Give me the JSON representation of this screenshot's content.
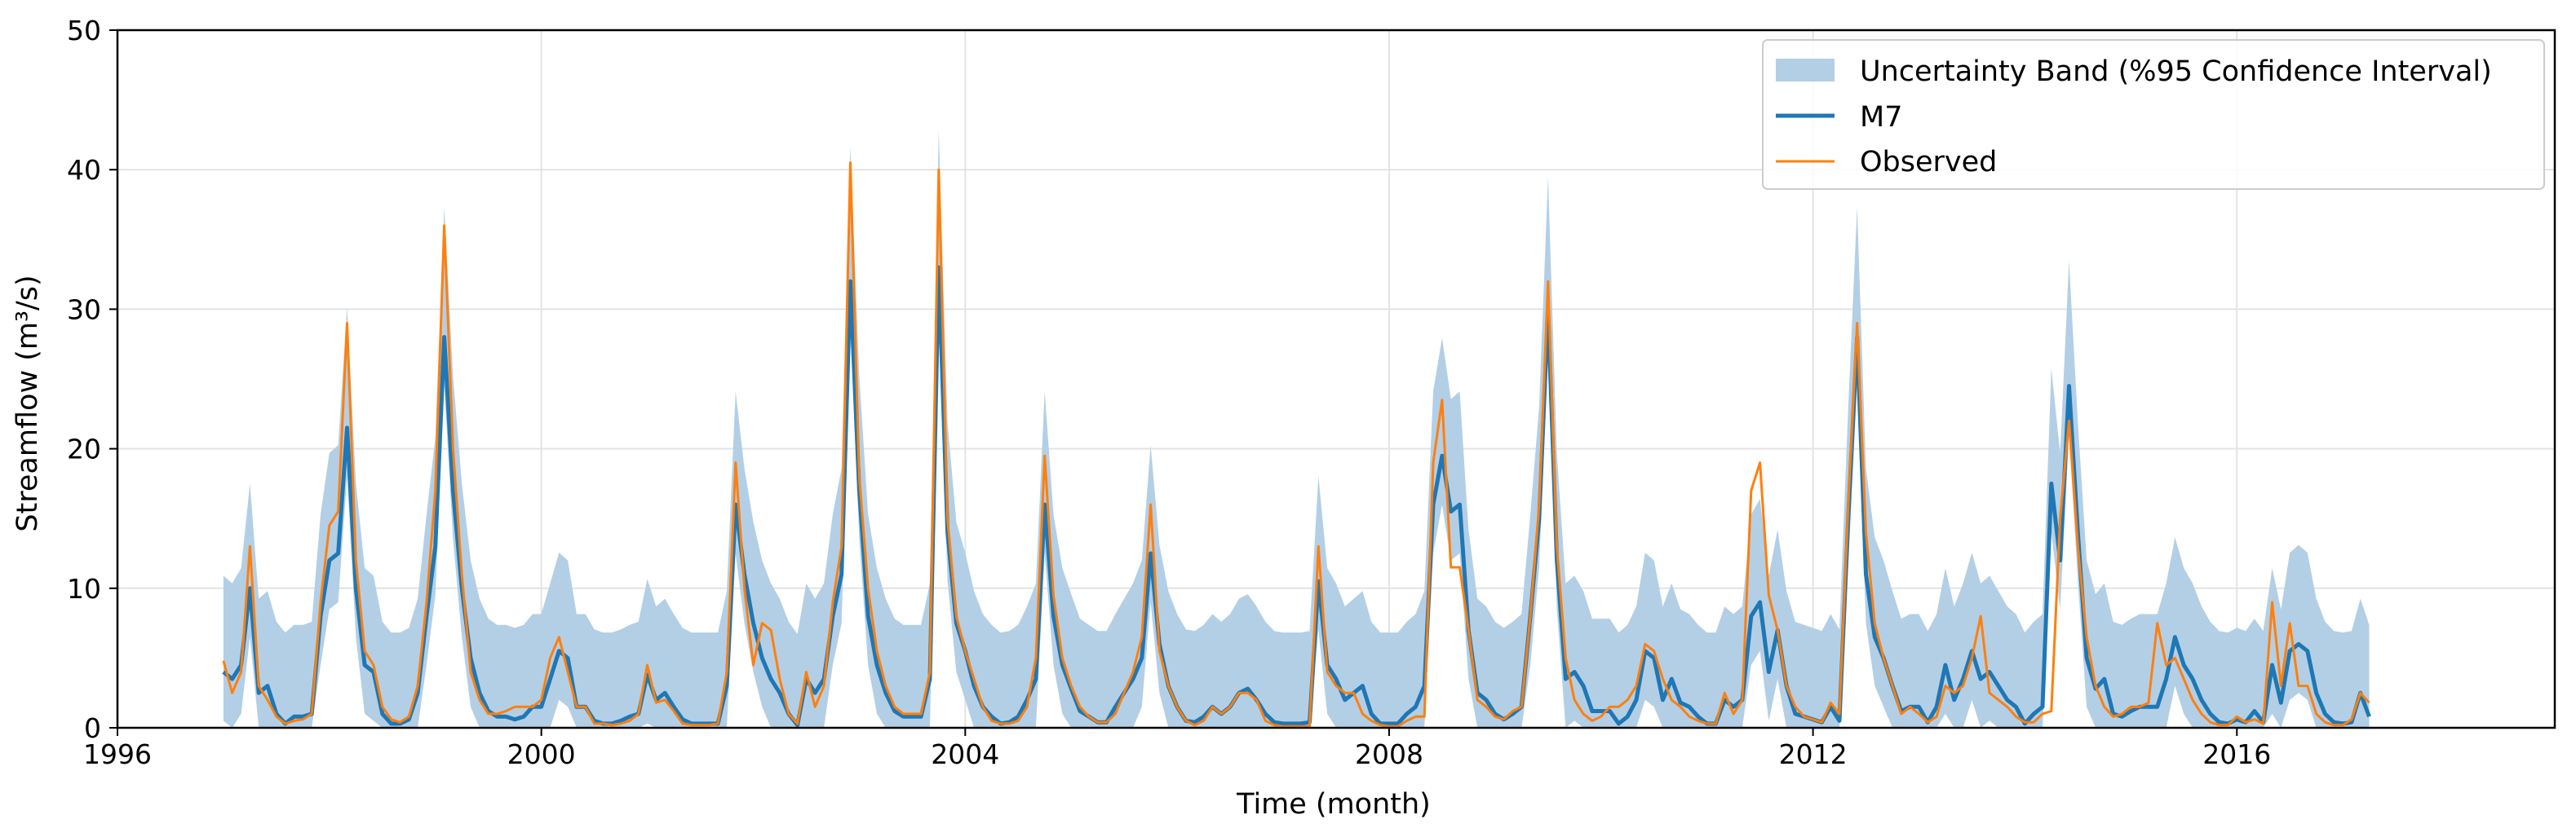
{
  "chart_data": {
    "type": "line",
    "title": "",
    "xlabel": "Time (month)",
    "ylabel": "Streamflow (m³/s)",
    "xlim": [
      1996,
      2019
    ],
    "ylim": [
      0,
      50
    ],
    "xticks": [
      1996,
      2000,
      2004,
      2008,
      2012,
      2016
    ],
    "xtick_labels": [
      "1996",
      "2000",
      "2004",
      "2008",
      "2012",
      "2016"
    ],
    "yticks": [
      0,
      10,
      20,
      30,
      40,
      50
    ],
    "ytick_labels": [
      "0",
      "10",
      "20",
      "30",
      "40",
      "50"
    ],
    "grid": true,
    "legend_position": "top-right",
    "legend": [
      {
        "label": "Uncertainty Band (%95 Confidence Interval)",
        "kind": "band",
        "color": "#b3cfe6"
      },
      {
        "label": "M7",
        "kind": "line",
        "color": "#1f77b4"
      },
      {
        "label": "Observed",
        "kind": "line",
        "color": "#ff7f0e"
      }
    ],
    "x_start_year": 1997.0,
    "x_step_years": 0.08333,
    "series": [
      {
        "name": "M7",
        "color": "#1f77b4",
        "values": [
          4.0,
          3.5,
          4.5,
          10.0,
          2.5,
          3.0,
          1.0,
          0.3,
          0.8,
          0.8,
          1.0,
          8.0,
          12.0,
          12.5,
          21.5,
          10.0,
          4.5,
          4.0,
          1.0,
          0.3,
          0.3,
          0.6,
          2.5,
          8.0,
          13.0,
          28.0,
          17.0,
          10.0,
          5.0,
          2.5,
          1.2,
          0.8,
          0.8,
          0.6,
          0.8,
          1.5,
          1.5,
          3.5,
          5.5,
          5.0,
          1.5,
          1.5,
          0.5,
          0.3,
          0.3,
          0.5,
          0.8,
          1.0,
          3.8,
          2.0,
          2.5,
          1.5,
          0.6,
          0.3,
          0.3,
          0.3,
          0.3,
          3.0,
          16.0,
          11.0,
          7.5,
          5.0,
          3.5,
          2.5,
          1.0,
          0.2,
          3.5,
          2.5,
          3.5,
          8.0,
          11.0,
          32.0,
          17.0,
          8.0,
          4.5,
          2.5,
          1.2,
          0.8,
          0.8,
          0.8,
          3.5,
          33.0,
          14.0,
          7.5,
          5.5,
          3.0,
          1.5,
          0.8,
          0.3,
          0.4,
          0.8,
          2.0,
          3.5,
          16.0,
          8.0,
          4.5,
          2.8,
          1.2,
          0.8,
          0.4,
          0.4,
          1.5,
          2.5,
          3.5,
          5.0,
          12.5,
          6.0,
          3.0,
          1.5,
          0.5,
          0.4,
          0.8,
          1.5,
          1.0,
          1.5,
          2.5,
          2.8,
          2.0,
          1.0,
          0.4,
          0.3,
          0.3,
          0.3,
          0.4,
          10.5,
          4.5,
          3.5,
          2.0,
          2.5,
          3.0,
          1.0,
          0.3,
          0.3,
          0.3,
          1.0,
          1.5,
          3.0,
          16.0,
          19.5,
          15.5,
          16.0,
          7.0,
          2.5,
          2.0,
          1.0,
          0.6,
          1.0,
          1.5,
          8.0,
          15.0,
          30.0,
          12.0,
          3.5,
          4.0,
          3.0,
          1.2,
          1.2,
          1.2,
          0.3,
          0.8,
          2.0,
          5.5,
          5.0,
          2.0,
          3.5,
          1.8,
          1.5,
          0.8,
          0.3,
          0.3,
          2.0,
          1.5,
          2.0,
          8.0,
          9.0,
          4.0,
          7.0,
          3.0,
          1.0,
          0.8,
          0.6,
          0.4,
          1.5,
          0.5,
          15.0,
          28.0,
          11.0,
          6.5,
          5.0,
          3.0,
          1.2,
          1.5,
          1.5,
          0.4,
          1.5,
          4.5,
          2.0,
          3.5,
          5.5,
          3.5,
          4.0,
          3.0,
          2.0,
          1.5,
          0.3,
          1.0,
          1.5,
          17.5,
          12.0,
          24.5,
          14.0,
          5.0,
          2.8,
          3.5,
          1.0,
          0.8,
          1.2,
          1.5,
          1.5,
          1.5,
          3.5,
          6.5,
          4.5,
          3.5,
          2.0,
          1.0,
          0.4,
          0.3,
          0.6,
          0.4,
          1.2,
          0.4,
          4.5,
          1.8,
          5.5,
          6.0,
          5.5,
          2.5,
          1.0,
          0.4,
          0.3,
          0.4,
          2.5,
          0.8
        ]
      },
      {
        "name": "Observed",
        "color": "#ff7f0e",
        "values": [
          4.8,
          2.5,
          4.0,
          13.0,
          3.0,
          2.0,
          0.8,
          0.3,
          0.5,
          0.6,
          1.0,
          9.0,
          14.5,
          15.5,
          29.0,
          12.0,
          5.5,
          4.5,
          1.5,
          0.6,
          0.4,
          0.8,
          3.0,
          9.0,
          17.0,
          36.0,
          20.0,
          11.0,
          4.0,
          2.0,
          1.0,
          1.0,
          1.2,
          1.5,
          1.5,
          1.5,
          2.0,
          5.0,
          6.5,
          4.0,
          1.5,
          1.5,
          0.3,
          0.3,
          0.2,
          0.3,
          0.5,
          1.0,
          4.5,
          1.8,
          2.0,
          1.2,
          0.3,
          0.2,
          0.2,
          0.2,
          0.3,
          4.0,
          19.0,
          10.0,
          4.5,
          7.5,
          7.0,
          3.5,
          1.0,
          0.3,
          4.0,
          1.5,
          3.0,
          9.0,
          13.0,
          40.5,
          18.0,
          10.0,
          5.5,
          3.0,
          1.5,
          1.0,
          1.0,
          1.0,
          4.0,
          40.0,
          15.0,
          8.0,
          5.5,
          3.5,
          1.5,
          0.5,
          0.3,
          0.3,
          0.5,
          1.5,
          5.0,
          19.5,
          9.5,
          5.0,
          3.0,
          1.5,
          0.8,
          0.4,
          0.4,
          1.0,
          2.5,
          4.0,
          6.5,
          16.0,
          5.5,
          3.0,
          1.5,
          0.5,
          0.2,
          0.5,
          1.5,
          1.0,
          1.5,
          2.5,
          2.5,
          2.0,
          0.5,
          0.2,
          0.1,
          0.1,
          0.1,
          0.1,
          13.0,
          4.0,
          3.0,
          2.5,
          2.5,
          1.0,
          0.5,
          0.2,
          0.1,
          0.1,
          0.5,
          0.8,
          0.8,
          19.0,
          23.5,
          11.5,
          11.5,
          7.0,
          2.0,
          1.5,
          0.8,
          0.6,
          1.2,
          1.5,
          8.0,
          16.0,
          32.0,
          13.0,
          5.0,
          2.0,
          1.0,
          0.5,
          0.8,
          1.5,
          1.5,
          2.0,
          3.0,
          6.0,
          5.5,
          3.5,
          2.0,
          1.5,
          0.8,
          0.5,
          0.3,
          0.3,
          2.5,
          1.0,
          2.0,
          17.0,
          19.0,
          9.5,
          7.0,
          3.0,
          1.5,
          0.8,
          0.6,
          0.4,
          1.8,
          1.0,
          16.0,
          29.0,
          14.0,
          7.5,
          5.0,
          3.0,
          1.0,
          1.5,
          1.0,
          0.4,
          0.8,
          3.0,
          2.5,
          3.0,
          5.0,
          8.0,
          2.5,
          2.0,
          1.5,
          0.8,
          0.4,
          0.4,
          1.0,
          1.2,
          15.0,
          22.0,
          13.0,
          6.5,
          3.0,
          1.5,
          0.8,
          1.0,
          1.5,
          1.5,
          1.8,
          7.5,
          4.5,
          5.0,
          3.5,
          2.0,
          1.0,
          0.4,
          0.2,
          0.2,
          0.8,
          0.4,
          0.6,
          0.3,
          9.0,
          3.0,
          7.5,
          3.0,
          3.0,
          1.0,
          0.4,
          0.2,
          0.2,
          0.6,
          2.5,
          1.8
        ]
      }
    ],
    "band": {
      "name": "Uncertainty Band (%95 Confidence Interval)",
      "color": "#b3cfe6",
      "lower_offset": 3.5,
      "upper_offset": 6.5,
      "upper_peak_factor": 1.1
    }
  }
}
